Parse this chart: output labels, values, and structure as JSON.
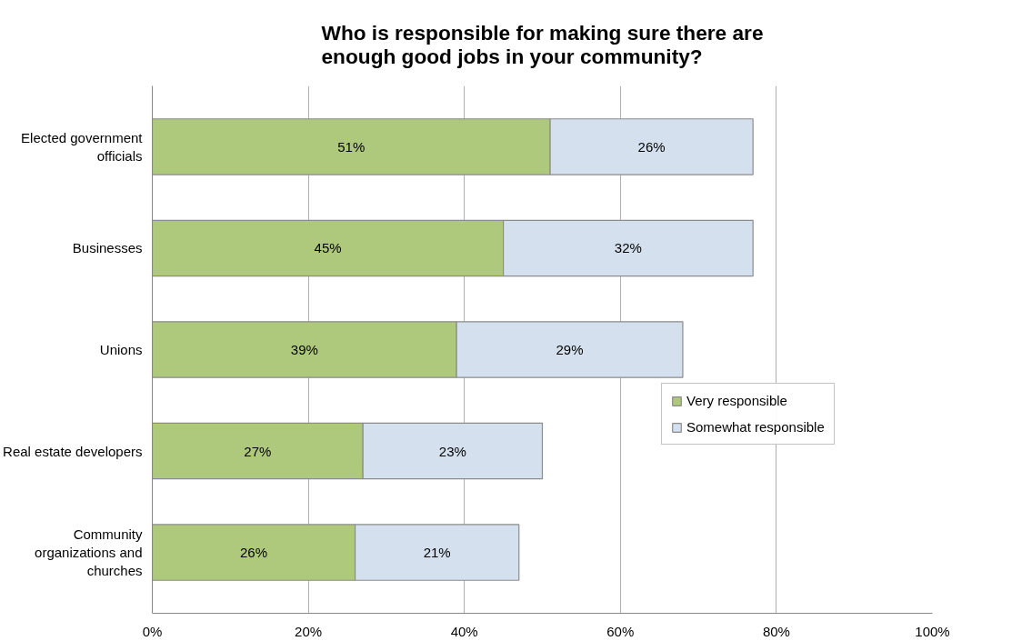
{
  "chart_data": {
    "type": "bar",
    "orientation": "horizontal",
    "stacked": true,
    "title": "Who is responsible for making sure there are enough good jobs in your community?",
    "categories": [
      "Elected government officials",
      "Businesses",
      "Unions",
      "Real estate developers",
      "Community organizations and churches"
    ],
    "series": [
      {
        "name": "Very responsible",
        "color": "#afc97c",
        "values": [
          51,
          45,
          39,
          27,
          26
        ],
        "value_labels": [
          "51%",
          "45%",
          "39%",
          "27%",
          "26%"
        ]
      },
      {
        "name": "Somewhat responsible",
        "color": "#d5e0ee",
        "values": [
          26,
          32,
          29,
          23,
          21
        ],
        "value_labels": [
          "26%",
          "32%",
          "29%",
          "23%",
          "21%"
        ]
      }
    ],
    "xlim": [
      0,
      100
    ],
    "xticks": [
      {
        "value": 0,
        "label": "0%"
      },
      {
        "value": 20,
        "label": "20%"
      },
      {
        "value": 40,
        "label": "40%"
      },
      {
        "value": 60,
        "label": "60%"
      },
      {
        "value": 80,
        "label": "80%"
      },
      {
        "value": 100,
        "label": "100%"
      }
    ],
    "grid": "x",
    "legend": "right"
  }
}
